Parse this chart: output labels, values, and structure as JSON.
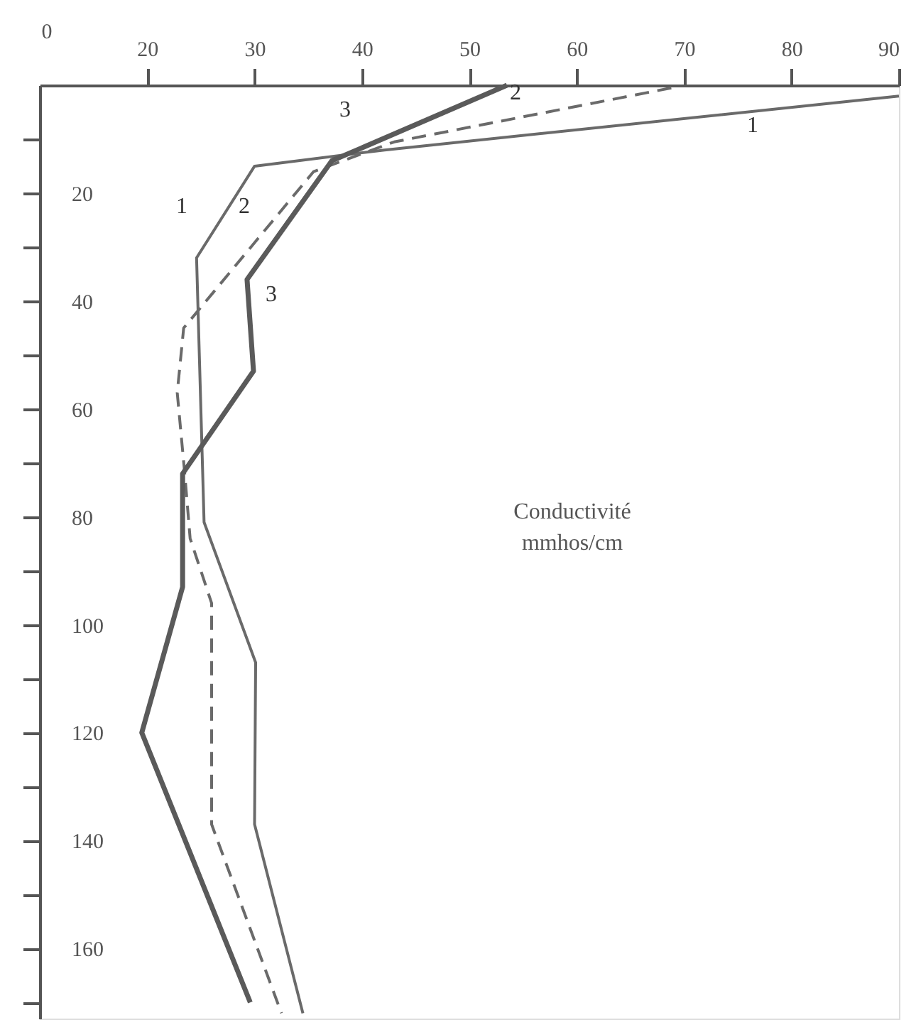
{
  "chart_data": {
    "type": "line",
    "xlabel": "Conductivité mmhos/cm",
    "xlim": [
      10,
      90
    ],
    "xticks": [
      20,
      30,
      40,
      50,
      60,
      70,
      80,
      90
    ],
    "ylim": [
      173,
      0
    ],
    "yticks": [
      {
        "value": 10,
        "label": null
      },
      20,
      {
        "value": 30,
        "label": null
      },
      40,
      {
        "value": 50,
        "label": null
      },
      60,
      {
        "value": 70,
        "label": null
      },
      80,
      {
        "value": 90,
        "label": null
      },
      100,
      {
        "value": 110,
        "label": null
      },
      120,
      {
        "value": 130,
        "label": null
      },
      140,
      {
        "value": 150,
        "label": null
      },
      160,
      {
        "value": 170,
        "label": null
      }
    ],
    "grid": false,
    "marker": "none",
    "series": [
      {
        "color": "#6a6a6a",
        "line_style": "solid",
        "x": [
          90,
          42.1,
          30,
          24.6,
          25.3,
          30.1,
          30,
          34.5
        ],
        "values": [
          2,
          12,
          15,
          32,
          81,
          107,
          137,
          172
        ]
      },
      {
        "color": "#6a6a6a",
        "line_style": "dashed",
        "x": [
          68.8,
          43,
          35.5,
          23.4,
          22.8,
          23.5,
          24,
          26,
          26,
          32.5
        ],
        "values": [
          0.5,
          10.5,
          16,
          45,
          57,
          72,
          84,
          96,
          137,
          172
        ]
      },
      {
        "color": "#5a5a5a",
        "line_style": "solid",
        "x": [
          53.5,
          37.2,
          29.3,
          29.9,
          23.3,
          23.3,
          19.5,
          29.6
        ],
        "values": [
          0,
          14,
          36,
          53,
          72,
          93,
          120,
          170
        ]
      }
    ],
    "annotations": [
      "0",
      "1",
      "2",
      "3",
      "1",
      "2",
      "3"
    ]
  }
}
